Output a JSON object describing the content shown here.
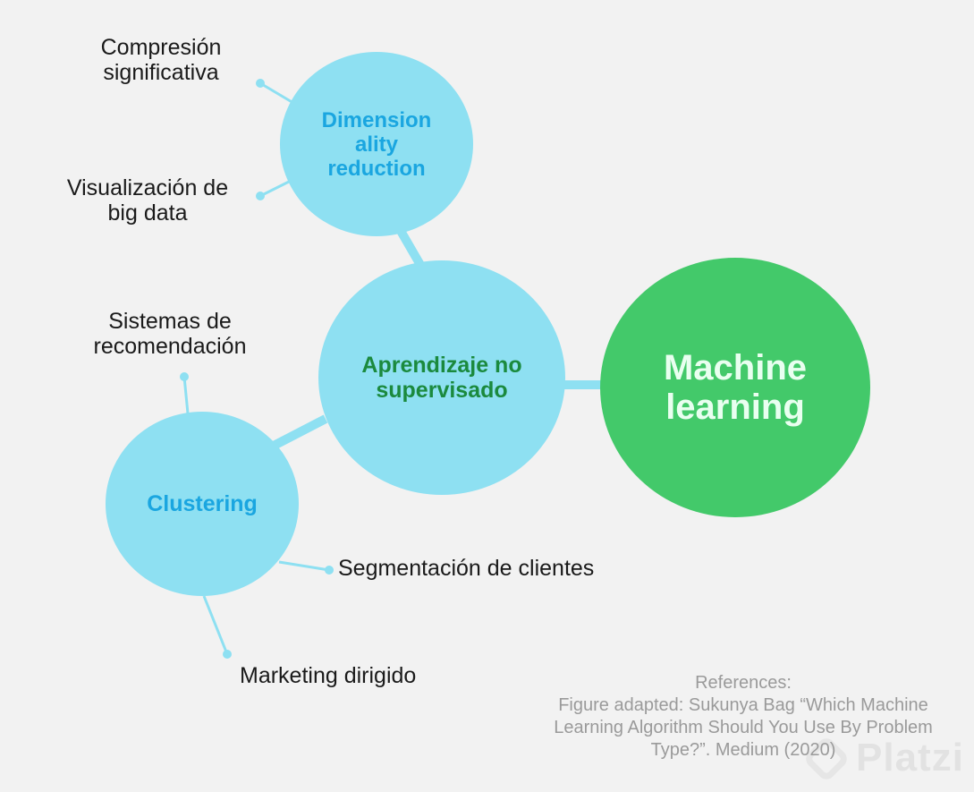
{
  "diagram": {
    "nodes": {
      "machine_learning": {
        "label": "Machine\nlearning",
        "color": "#43c96a",
        "text_color": "#e9fff0"
      },
      "unsupervised": {
        "label": "Aprendizaje no\nsupervisado",
        "color": "#8ee0f2",
        "text_color": "#1b8a3e"
      },
      "dimensionality": {
        "label": "Dimension\nality\nreduction",
        "color": "#8ee0f2",
        "text_color": "#1aa6e0"
      },
      "clustering": {
        "label": "Clustering",
        "color": "#8ee0f2",
        "text_color": "#1aa6e0"
      }
    },
    "leaves": {
      "compresion": "Compresión\nsignificativa",
      "visualizacion": "Visualización de\nbig data",
      "recomendacion": "Sistemas de\nrecomendación",
      "segmentacion": "Segmentación de clientes",
      "marketing": "Marketing dirigido"
    }
  },
  "references": "References:\nFigure adapted: Sukunya Bag “Which Machine\nLearning Algorithm Should You Use By Problem\nType?”. Medium (2020)",
  "watermark": "Platzi"
}
